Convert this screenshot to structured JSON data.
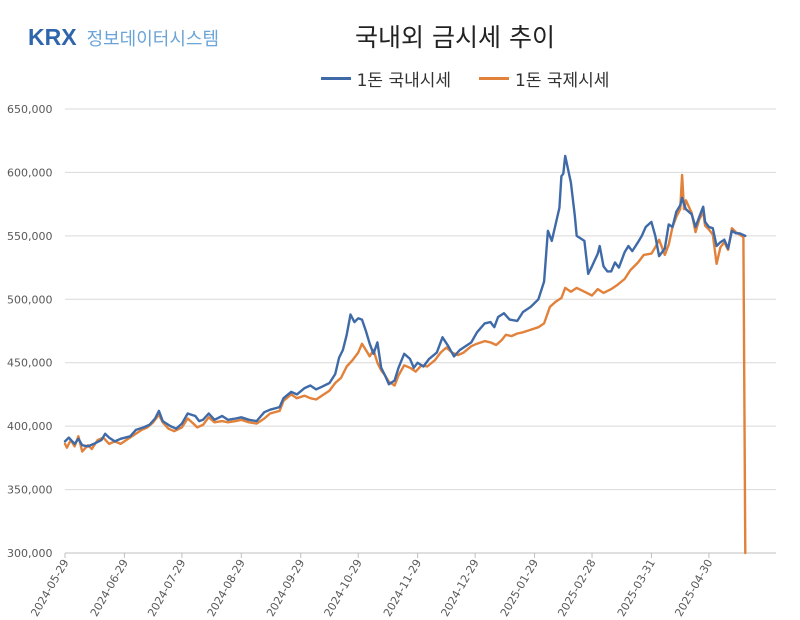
{
  "logo": {
    "mark": "KRX",
    "text": "정보데이터시스템"
  },
  "colors": {
    "domestic": "#3f6aa8",
    "international": "#e2813a",
    "grid": "#d9d9d9",
    "axis": "#bfbfbf",
    "label": "#595959"
  },
  "chart_data": {
    "type": "line",
    "title": "국내외 금시세 추이",
    "legend_position": "top",
    "grid": true,
    "ylim": [
      300000,
      650000
    ],
    "yticks": [
      300000,
      350000,
      400000,
      450000,
      500000,
      550000,
      600000,
      650000
    ],
    "ytick_labels": [
      "300,000",
      "350,000",
      "400,000",
      "450,000",
      "500,000",
      "550,000",
      "600,000",
      "650,000"
    ],
    "xlim": [
      "2024-05-29",
      "2025-06-04"
    ],
    "xtick_labels": [
      "2024-05-29",
      "2024-06-29",
      "2024-07-29",
      "2024-08-29",
      "2024-09-29",
      "2024-10-29",
      "2024-11-29",
      "2024-12-29",
      "2025-01-29",
      "2025-02-28",
      "2025-03-31",
      "2025-04-30"
    ],
    "series": [
      {
        "name": "1돈 국내시세",
        "points": [
          [
            "2024-05-29",
            388000
          ],
          [
            "2024-05-31",
            391000
          ],
          [
            "2024-06-03",
            386000
          ],
          [
            "2024-06-05",
            390000
          ],
          [
            "2024-06-07",
            385000
          ],
          [
            "2024-06-10",
            384000
          ],
          [
            "2024-06-13",
            386000
          ],
          [
            "2024-06-17",
            389000
          ],
          [
            "2024-06-19",
            394000
          ],
          [
            "2024-06-21",
            391000
          ],
          [
            "2024-06-24",
            388000
          ],
          [
            "2024-06-27",
            390000
          ],
          [
            "2024-07-02",
            392000
          ],
          [
            "2024-07-05",
            397000
          ],
          [
            "2024-07-09",
            399000
          ],
          [
            "2024-07-12",
            401000
          ],
          [
            "2024-07-15",
            406000
          ],
          [
            "2024-07-17",
            412000
          ],
          [
            "2024-07-19",
            404000
          ],
          [
            "2024-07-23",
            400000
          ],
          [
            "2024-07-26",
            398000
          ],
          [
            "2024-07-29",
            402000
          ],
          [
            "2024-08-01",
            410000
          ],
          [
            "2024-08-05",
            408000
          ],
          [
            "2024-08-07",
            404000
          ],
          [
            "2024-08-09",
            405000
          ],
          [
            "2024-08-12",
            410000
          ],
          [
            "2024-08-15",
            405000
          ],
          [
            "2024-08-19",
            408000
          ],
          [
            "2024-08-22",
            405000
          ],
          [
            "2024-08-26",
            406000
          ],
          [
            "2024-08-29",
            407000
          ],
          [
            "2024-09-02",
            405000
          ],
          [
            "2024-09-06",
            404000
          ],
          [
            "2024-09-10",
            411000
          ],
          [
            "2024-09-13",
            413000
          ],
          [
            "2024-09-18",
            415000
          ],
          [
            "2024-09-20",
            422000
          ],
          [
            "2024-09-24",
            427000
          ],
          [
            "2024-09-27",
            425000
          ],
          [
            "2024-10-01",
            430000
          ],
          [
            "2024-10-04",
            432000
          ],
          [
            "2024-10-07",
            429000
          ],
          [
            "2024-10-10",
            431000
          ],
          [
            "2024-10-14",
            434000
          ],
          [
            "2024-10-17",
            441000
          ],
          [
            "2024-10-19",
            454000
          ],
          [
            "2024-10-21",
            460000
          ],
          [
            "2024-10-23",
            472000
          ],
          [
            "2024-10-25",
            488000
          ],
          [
            "2024-10-27",
            482000
          ],
          [
            "2024-10-29",
            485000
          ],
          [
            "2024-10-31",
            484000
          ],
          [
            "2024-11-02",
            475000
          ],
          [
            "2024-11-04",
            465000
          ],
          [
            "2024-11-06",
            457000
          ],
          [
            "2024-11-08",
            466000
          ],
          [
            "2024-11-10",
            446000
          ],
          [
            "2024-11-12",
            440000
          ],
          [
            "2024-11-14",
            433000
          ],
          [
            "2024-11-17",
            436000
          ],
          [
            "2024-11-19",
            446000
          ],
          [
            "2024-11-22",
            457000
          ],
          [
            "2024-11-25",
            453000
          ],
          [
            "2024-11-27",
            446000
          ],
          [
            "2024-11-29",
            450000
          ],
          [
            "2024-12-02",
            447000
          ],
          [
            "2024-12-05",
            453000
          ],
          [
            "2024-12-09",
            458000
          ],
          [
            "2024-12-12",
            470000
          ],
          [
            "2024-12-15",
            463000
          ],
          [
            "2024-12-18",
            455000
          ],
          [
            "2024-12-21",
            460000
          ],
          [
            "2024-12-24",
            463000
          ],
          [
            "2024-12-27",
            466000
          ],
          [
            "2024-12-30",
            474000
          ],
          [
            "2025-01-03",
            481000
          ],
          [
            "2025-01-06",
            482000
          ],
          [
            "2025-01-08",
            478000
          ],
          [
            "2025-01-10",
            486000
          ],
          [
            "2025-01-13",
            489000
          ],
          [
            "2025-01-16",
            484000
          ],
          [
            "2025-01-20",
            483000
          ],
          [
            "2025-01-23",
            490000
          ],
          [
            "2025-01-27",
            494000
          ],
          [
            "2025-01-31",
            500000
          ],
          [
            "2025-02-03",
            514000
          ],
          [
            "2025-02-05",
            554000
          ],
          [
            "2025-02-07",
            546000
          ],
          [
            "2025-02-09",
            559000
          ],
          [
            "2025-02-11",
            572000
          ],
          [
            "2025-02-12",
            597000
          ],
          [
            "2025-02-13",
            599000
          ],
          [
            "2025-02-14",
            613000
          ],
          [
            "2025-02-17",
            592000
          ],
          [
            "2025-02-19",
            566000
          ],
          [
            "2025-02-20",
            550000
          ],
          [
            "2025-02-24",
            546000
          ],
          [
            "2025-02-26",
            520000
          ],
          [
            "2025-02-28",
            526000
          ],
          [
            "2025-03-03",
            536000
          ],
          [
            "2025-03-04",
            542000
          ],
          [
            "2025-03-06",
            526000
          ],
          [
            "2025-03-08",
            522000
          ],
          [
            "2025-03-10",
            522000
          ],
          [
            "2025-03-12",
            529000
          ],
          [
            "2025-03-14",
            525000
          ],
          [
            "2025-03-17",
            537000
          ],
          [
            "2025-03-19",
            542000
          ],
          [
            "2025-03-21",
            538000
          ],
          [
            "2025-03-24",
            545000
          ],
          [
            "2025-03-26",
            550000
          ],
          [
            "2025-03-28",
            557000
          ],
          [
            "2025-03-31",
            561000
          ],
          [
            "2025-04-02",
            550000
          ],
          [
            "2025-04-04",
            534000
          ],
          [
            "2025-04-07",
            540000
          ],
          [
            "2025-04-09",
            559000
          ],
          [
            "2025-04-11",
            557000
          ],
          [
            "2025-04-13",
            569000
          ],
          [
            "2025-04-15",
            574000
          ],
          [
            "2025-04-16",
            580000
          ],
          [
            "2025-04-17",
            575000
          ],
          [
            "2025-04-18",
            571000
          ],
          [
            "2025-04-21",
            567000
          ],
          [
            "2025-04-23",
            557000
          ],
          [
            "2025-04-25",
            565000
          ],
          [
            "2025-04-27",
            573000
          ],
          [
            "2025-04-28",
            561000
          ],
          [
            "2025-04-30",
            557000
          ],
          [
            "2025-05-02",
            556000
          ],
          [
            "2025-05-04",
            542000
          ],
          [
            "2025-05-06",
            545000
          ],
          [
            "2025-05-08",
            547000
          ],
          [
            "2025-05-10",
            540000
          ],
          [
            "2025-05-12",
            554000
          ],
          [
            "2025-05-14",
            552000
          ],
          [
            "2025-05-16",
            552000
          ],
          [
            "2025-05-19",
            550000
          ]
        ]
      },
      {
        "name": "1돈 국제시세",
        "points": [
          [
            "2024-05-29",
            386000
          ],
          [
            "2024-05-30",
            383000
          ],
          [
            "2024-06-01",
            389000
          ],
          [
            "2024-06-03",
            384000
          ],
          [
            "2024-06-05",
            392000
          ],
          [
            "2024-06-07",
            380000
          ],
          [
            "2024-06-10",
            385000
          ],
          [
            "2024-06-12",
            382000
          ],
          [
            "2024-06-15",
            389000
          ],
          [
            "2024-06-18",
            391000
          ],
          [
            "2024-06-21",
            386000
          ],
          [
            "2024-06-24",
            388000
          ],
          [
            "2024-06-27",
            386000
          ],
          [
            "2024-07-01",
            390000
          ],
          [
            "2024-07-04",
            393000
          ],
          [
            "2024-07-08",
            397000
          ],
          [
            "2024-07-11",
            399000
          ],
          [
            "2024-07-14",
            403000
          ],
          [
            "2024-07-17",
            409000
          ],
          [
            "2024-07-19",
            403000
          ],
          [
            "2024-07-22",
            398000
          ],
          [
            "2024-07-25",
            396000
          ],
          [
            "2024-07-29",
            399000
          ],
          [
            "2024-08-01",
            406000
          ],
          [
            "2024-08-04",
            402000
          ],
          [
            "2024-08-06",
            399000
          ],
          [
            "2024-08-09",
            401000
          ],
          [
            "2024-08-12",
            407000
          ],
          [
            "2024-08-15",
            403000
          ],
          [
            "2024-08-19",
            404000
          ],
          [
            "2024-08-22",
            403000
          ],
          [
            "2024-08-26",
            404000
          ],
          [
            "2024-08-29",
            405000
          ],
          [
            "2024-09-02",
            403000
          ],
          [
            "2024-09-06",
            402000
          ],
          [
            "2024-09-10",
            406000
          ],
          [
            "2024-09-13",
            410000
          ],
          [
            "2024-09-18",
            412000
          ],
          [
            "2024-09-20",
            420000
          ],
          [
            "2024-09-24",
            425000
          ],
          [
            "2024-09-27",
            422000
          ],
          [
            "2024-10-01",
            424000
          ],
          [
            "2024-10-04",
            422000
          ],
          [
            "2024-10-07",
            421000
          ],
          [
            "2024-10-10",
            424000
          ],
          [
            "2024-10-14",
            428000
          ],
          [
            "2024-10-17",
            434000
          ],
          [
            "2024-10-20",
            438000
          ],
          [
            "2024-10-23",
            447000
          ],
          [
            "2024-10-26",
            452000
          ],
          [
            "2024-10-29",
            458000
          ],
          [
            "2024-10-31",
            465000
          ],
          [
            "2024-11-02",
            460000
          ],
          [
            "2024-11-04",
            455000
          ],
          [
            "2024-11-06",
            460000
          ],
          [
            "2024-11-08",
            450000
          ],
          [
            "2024-11-10",
            444000
          ],
          [
            "2024-11-12",
            440000
          ],
          [
            "2024-11-14",
            435000
          ],
          [
            "2024-11-17",
            432000
          ],
          [
            "2024-11-19",
            440000
          ],
          [
            "2024-11-22",
            448000
          ],
          [
            "2024-11-25",
            446000
          ],
          [
            "2024-11-28",
            443000
          ],
          [
            "2024-12-01",
            448000
          ],
          [
            "2024-12-04",
            447000
          ],
          [
            "2024-12-08",
            452000
          ],
          [
            "2024-12-11",
            458000
          ],
          [
            "2024-12-14",
            462000
          ],
          [
            "2024-12-17",
            458000
          ],
          [
            "2024-12-20",
            456000
          ],
          [
            "2024-12-23",
            458000
          ],
          [
            "2024-12-27",
            463000
          ],
          [
            "2024-12-30",
            465000
          ],
          [
            "2025-01-03",
            467000
          ],
          [
            "2025-01-06",
            466000
          ],
          [
            "2025-01-09",
            464000
          ],
          [
            "2025-01-12",
            468000
          ],
          [
            "2025-01-14",
            472000
          ],
          [
            "2025-01-17",
            471000
          ],
          [
            "2025-01-20",
            473000
          ],
          [
            "2025-01-23",
            474000
          ],
          [
            "2025-01-27",
            476000
          ],
          [
            "2025-01-31",
            478000
          ],
          [
            "2025-02-03",
            481000
          ],
          [
            "2025-02-06",
            494000
          ],
          [
            "2025-02-09",
            498000
          ],
          [
            "2025-02-12",
            501000
          ],
          [
            "2025-02-14",
            509000
          ],
          [
            "2025-02-17",
            506000
          ],
          [
            "2025-02-20",
            509000
          ],
          [
            "2025-02-24",
            506000
          ],
          [
            "2025-02-28",
            503000
          ],
          [
            "2025-03-03",
            508000
          ],
          [
            "2025-03-06",
            505000
          ],
          [
            "2025-03-10",
            508000
          ],
          [
            "2025-03-13",
            511000
          ],
          [
            "2025-03-17",
            516000
          ],
          [
            "2025-03-20",
            523000
          ],
          [
            "2025-03-24",
            529000
          ],
          [
            "2025-03-27",
            535000
          ],
          [
            "2025-03-31",
            536000
          ],
          [
            "2025-04-02",
            541000
          ],
          [
            "2025-04-04",
            547000
          ],
          [
            "2025-04-07",
            535000
          ],
          [
            "2025-04-09",
            543000
          ],
          [
            "2025-04-11",
            557000
          ],
          [
            "2025-04-13",
            565000
          ],
          [
            "2025-04-15",
            571000
          ],
          [
            "2025-04-16",
            598000
          ],
          [
            "2025-04-17",
            571000
          ],
          [
            "2025-04-18",
            578000
          ],
          [
            "2025-04-21",
            568000
          ],
          [
            "2025-04-23",
            553000
          ],
          [
            "2025-04-25",
            563000
          ],
          [
            "2025-04-27",
            569000
          ],
          [
            "2025-04-28",
            558000
          ],
          [
            "2025-04-30",
            555000
          ],
          [
            "2025-05-02",
            551000
          ],
          [
            "2025-05-04",
            528000
          ],
          [
            "2025-05-06",
            541000
          ],
          [
            "2025-05-08",
            545000
          ],
          [
            "2025-05-10",
            539000
          ],
          [
            "2025-05-12",
            556000
          ],
          [
            "2025-05-14",
            553000
          ],
          [
            "2025-05-16",
            551000
          ],
          [
            "2025-05-18",
            549000
          ],
          [
            "2025-05-19",
            300000
          ]
        ]
      }
    ]
  }
}
